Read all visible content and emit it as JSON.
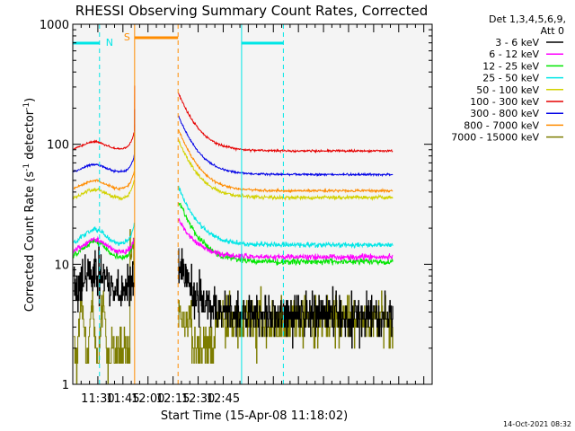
{
  "chart_data": {
    "type": "line",
    "title": "RHESSI Observing Summary Count Rates, Corrected",
    "xlabel": "Start Time (15-Apr-08 11:18:02)",
    "ylabel_main": "Corrected Count Rate (s",
    "ylabel_sup1": "-1",
    "ylabel_mid": " detector",
    "ylabel_sup2": "-1",
    "ylabel_end": ")",
    "ylog": true,
    "ylim": [
      1,
      1000
    ],
    "xlim_minutes": [
      675,
      890
    ],
    "x_ticks": [
      {
        "label": "11:30",
        "min": 690
      },
      {
        "label": "11:45",
        "min": 705
      },
      {
        "label": "12:00",
        "min": 720
      },
      {
        "label": "12:15",
        "min": 735
      },
      {
        "label": "12:30",
        "min": 750
      },
      {
        "label": "12:45",
        "min": 765
      }
    ],
    "y_ticks": [
      {
        "label": "1",
        "value": 1
      },
      {
        "label": "10",
        "value": 10
      },
      {
        "label": "100",
        "value": 100
      },
      {
        "label": "1000",
        "value": 1000
      }
    ],
    "legend_header": [
      "Det 1,3,4,5,6,9,",
      "Att 0"
    ],
    "series": [
      {
        "name": "3 - 6 keV",
        "color": "#000000"
      },
      {
        "name": "6 - 12 keV",
        "color": "#ff00ff"
      },
      {
        "name": "12 - 25 keV",
        "color": "#00e600"
      },
      {
        "name": "25 - 50 keV",
        "color": "#00e6e6"
      },
      {
        "name": "50 - 100 keV",
        "color": "#d2d200"
      },
      {
        "name": "100 - 300 keV",
        "color": "#e60000"
      },
      {
        "name": "300 - 800 keV",
        "color": "#0000e6"
      },
      {
        "name": "800 - 7000 keV",
        "color": "#ff8c00"
      },
      {
        "name": "7000 - 15000 keV",
        "color": "#7d7d00"
      }
    ],
    "markers": {
      "n_label": "N",
      "s_label": "S",
      "night": [
        {
          "start": 665,
          "end": 691
        },
        {
          "start": 776,
          "end": 801
        }
      ],
      "saa_start": 712,
      "saa_end": 738
    },
    "timestamp": "14-Oct-2021 08:32"
  }
}
